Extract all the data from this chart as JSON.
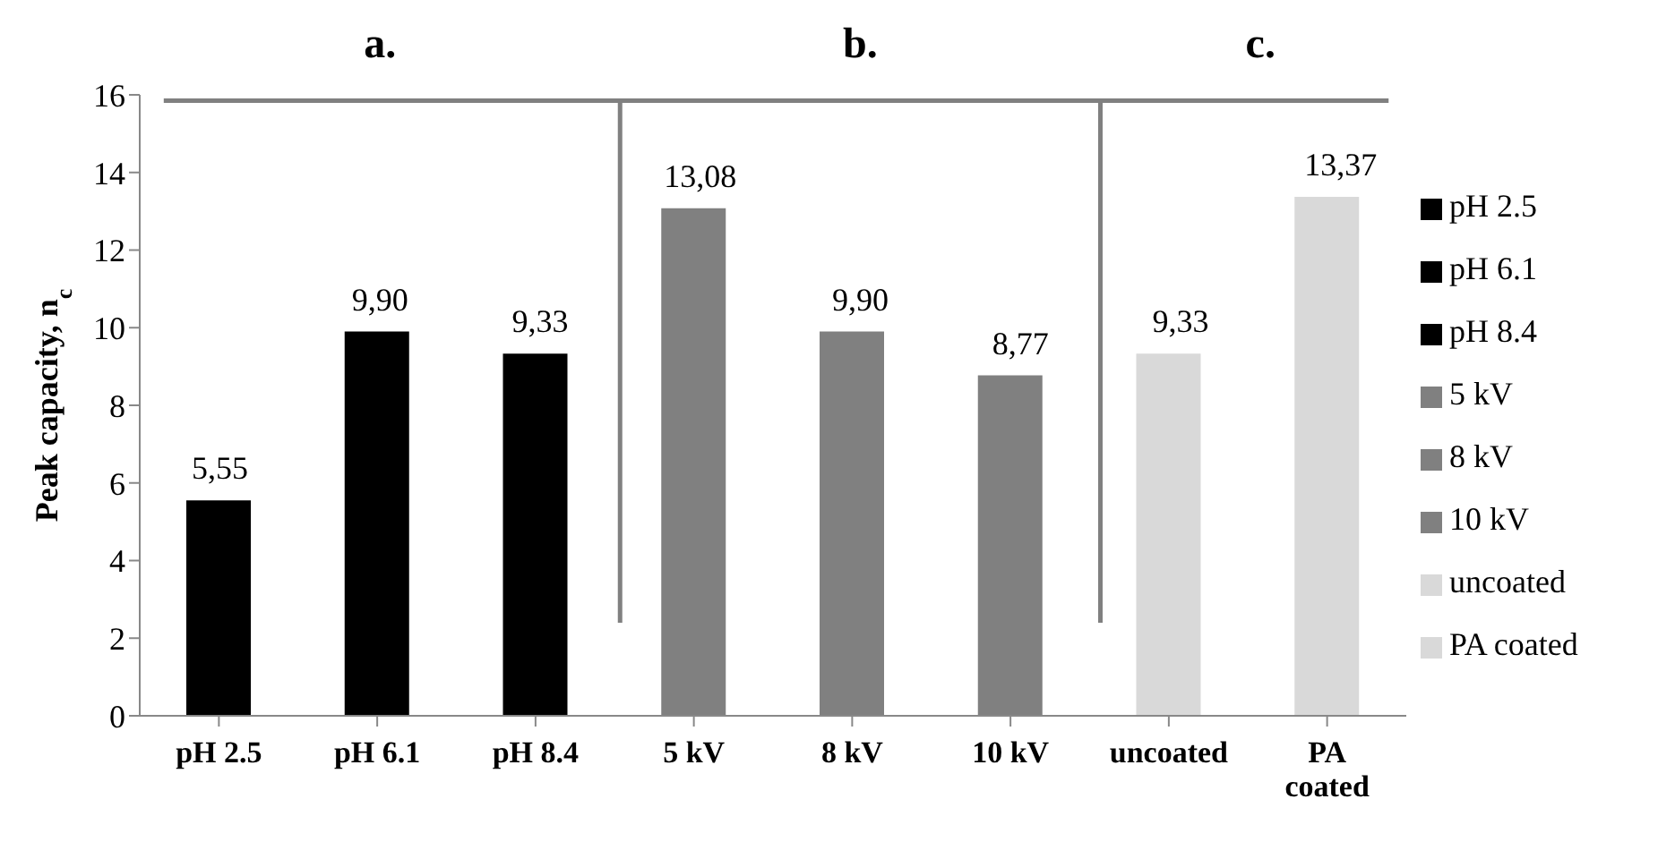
{
  "chart_data": {
    "type": "bar",
    "ylabel": "Peak capacity, n$_{c}$",
    "categories": [
      "pH 2.5",
      "pH 6.1",
      "pH 8.4",
      "5 kV",
      "8 kV",
      "10 kV",
      "uncoated",
      "PA coated"
    ],
    "series": [
      {
        "name": "pH 2.5",
        "color": "#000000",
        "values": [
          5.55,
          null,
          null,
          null,
          null,
          null,
          null,
          null
        ],
        "value_labels": [
          "5,55",
          null,
          null,
          null,
          null,
          null,
          null,
          null
        ]
      },
      {
        "name": "pH 6.1",
        "color": "#000000",
        "values": [
          null,
          9.9,
          null,
          null,
          null,
          null,
          null,
          null
        ],
        "value_labels": [
          null,
          "9,90",
          null,
          null,
          null,
          null,
          null,
          null
        ]
      },
      {
        "name": "pH 8.4",
        "color": "#000000",
        "values": [
          null,
          null,
          9.33,
          null,
          null,
          null,
          null,
          null
        ],
        "value_labels": [
          null,
          null,
          "9,33",
          null,
          null,
          null,
          null,
          null
        ]
      },
      {
        "name": "5 kV",
        "color": "#808080",
        "values": [
          null,
          null,
          null,
          13.08,
          null,
          null,
          null,
          null
        ],
        "value_labels": [
          null,
          null,
          null,
          "13,08",
          null,
          null,
          null,
          null
        ]
      },
      {
        "name": "8 kV",
        "color": "#808080",
        "values": [
          null,
          null,
          null,
          null,
          9.9,
          null,
          null,
          null
        ],
        "value_labels": [
          null,
          null,
          null,
          null,
          "9,90",
          null,
          null,
          null
        ]
      },
      {
        "name": "10 kV",
        "color": "#808080",
        "values": [
          null,
          null,
          null,
          null,
          null,
          8.77,
          null,
          null
        ],
        "value_labels": [
          null,
          null,
          null,
          null,
          null,
          "8,77",
          null,
          null
        ]
      },
      {
        "name": "uncoated",
        "color": "#d9d9d9",
        "values": [
          null,
          null,
          null,
          null,
          null,
          null,
          9.33,
          null
        ],
        "value_labels": [
          null,
          null,
          null,
          null,
          null,
          null,
          "9,33",
          null
        ]
      },
      {
        "name": "PA coated",
        "color": "#d9d9d9",
        "values": [
          null,
          null,
          null,
          null,
          null,
          null,
          null,
          13.37
        ],
        "value_labels": [
          null,
          null,
          null,
          null,
          null,
          null,
          null,
          "13,37"
        ]
      }
    ],
    "ylim": [
      0,
      16
    ],
    "yticks": [
      0,
      2,
      4,
      6,
      8,
      10,
      12,
      14,
      16
    ],
    "annotations": [
      "a.",
      "b.",
      "c."
    ],
    "grid": false,
    "legend": "right"
  }
}
